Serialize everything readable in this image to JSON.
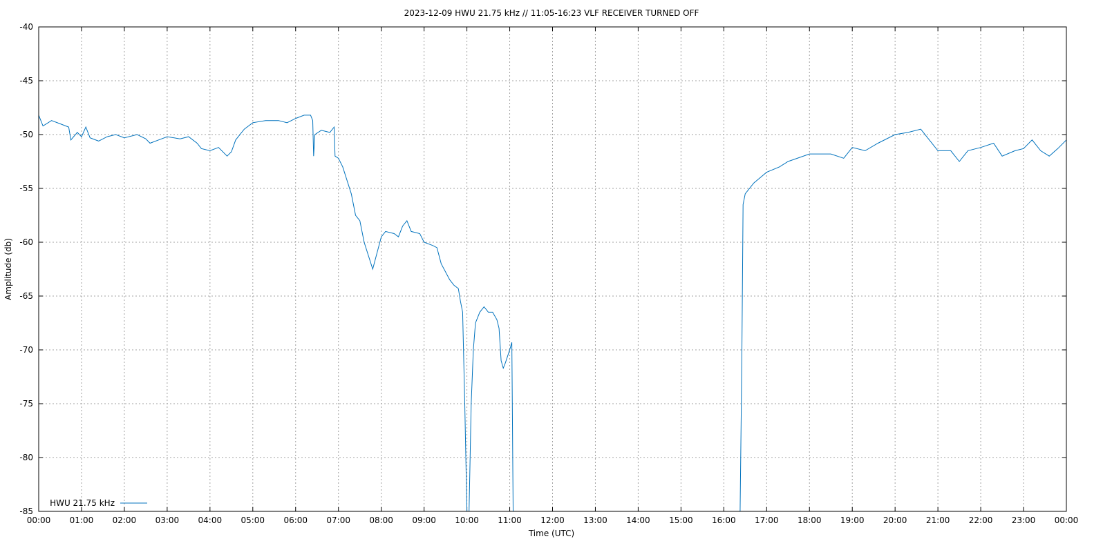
{
  "chart_data": {
    "type": "line",
    "title": "2023-12-09 HWU 21.75 kHz // 11:05-16:23 VLF RECEIVER TURNED OFF",
    "xlabel": "Time (UTC)",
    "ylabel": "Amplitude (db)",
    "xlim": [
      0,
      24
    ],
    "ylim": [
      -85,
      -40
    ],
    "grid": true,
    "legend_position": "bottom-left",
    "x_ticks": [
      "00:00",
      "01:00",
      "02:00",
      "03:00",
      "04:00",
      "05:00",
      "06:00",
      "07:00",
      "08:00",
      "09:00",
      "10:00",
      "11:00",
      "12:00",
      "13:00",
      "14:00",
      "15:00",
      "16:00",
      "17:00",
      "18:00",
      "19:00",
      "20:00",
      "21:00",
      "22:00",
      "23:00",
      "00:00"
    ],
    "y_ticks": [
      "-40",
      "-45",
      "-50",
      "-55",
      "-60",
      "-65",
      "-70",
      "-75",
      "-80",
      "-85"
    ],
    "y_tick_values": [
      -40,
      -45,
      -50,
      -55,
      -60,
      -65,
      -70,
      -75,
      -80,
      -85
    ],
    "series": [
      {
        "name": "HWU 21.75 kHz",
        "color": "#0072bd",
        "x_unit": "hours UTC",
        "points": [
          [
            0.0,
            -48.2
          ],
          [
            0.1,
            -49.2
          ],
          [
            0.3,
            -48.7
          ],
          [
            0.5,
            -49.0
          ],
          [
            0.7,
            -49.3
          ],
          [
            0.75,
            -50.5
          ],
          [
            0.9,
            -49.8
          ],
          [
            1.0,
            -50.2
          ],
          [
            1.1,
            -49.3
          ],
          [
            1.2,
            -50.3
          ],
          [
            1.4,
            -50.6
          ],
          [
            1.6,
            -50.2
          ],
          [
            1.8,
            -50.0
          ],
          [
            2.0,
            -50.3
          ],
          [
            2.3,
            -50.0
          ],
          [
            2.5,
            -50.4
          ],
          [
            2.6,
            -50.8
          ],
          [
            2.8,
            -50.5
          ],
          [
            3.0,
            -50.2
          ],
          [
            3.3,
            -50.4
          ],
          [
            3.5,
            -50.2
          ],
          [
            3.7,
            -50.8
          ],
          [
            3.8,
            -51.3
          ],
          [
            4.0,
            -51.5
          ],
          [
            4.2,
            -51.2
          ],
          [
            4.4,
            -52.0
          ],
          [
            4.5,
            -51.6
          ],
          [
            4.6,
            -50.5
          ],
          [
            4.8,
            -49.5
          ],
          [
            5.0,
            -48.9
          ],
          [
            5.3,
            -48.7
          ],
          [
            5.6,
            -48.7
          ],
          [
            5.8,
            -48.9
          ],
          [
            6.0,
            -48.5
          ],
          [
            6.2,
            -48.2
          ],
          [
            6.35,
            -48.2
          ],
          [
            6.4,
            -48.7
          ],
          [
            6.42,
            -52.0
          ],
          [
            6.45,
            -50.0
          ],
          [
            6.6,
            -49.6
          ],
          [
            6.8,
            -49.8
          ],
          [
            6.9,
            -49.3
          ],
          [
            6.92,
            -52.0
          ],
          [
            7.0,
            -52.2
          ],
          [
            7.1,
            -53.0
          ],
          [
            7.3,
            -55.5
          ],
          [
            7.4,
            -57.5
          ],
          [
            7.5,
            -58.0
          ],
          [
            7.6,
            -60.0
          ],
          [
            7.8,
            -62.5
          ],
          [
            7.9,
            -61.0
          ],
          [
            8.0,
            -59.5
          ],
          [
            8.1,
            -59.0
          ],
          [
            8.3,
            -59.2
          ],
          [
            8.4,
            -59.5
          ],
          [
            8.5,
            -58.5
          ],
          [
            8.6,
            -58.0
          ],
          [
            8.7,
            -59.0
          ],
          [
            8.9,
            -59.2
          ],
          [
            9.0,
            -60.0
          ],
          [
            9.2,
            -60.3
          ],
          [
            9.3,
            -60.5
          ],
          [
            9.4,
            -62.0
          ],
          [
            9.6,
            -63.5
          ],
          [
            9.7,
            -64.0
          ],
          [
            9.8,
            -64.3
          ],
          [
            9.85,
            -65.5
          ],
          [
            9.9,
            -66.5
          ],
          [
            9.95,
            -75.0
          ],
          [
            10.0,
            -85.0
          ],
          null,
          [
            10.05,
            -85.0
          ],
          [
            10.1,
            -75.0
          ],
          [
            10.15,
            -70.0
          ],
          [
            10.2,
            -67.5
          ],
          [
            10.3,
            -66.5
          ],
          [
            10.4,
            -66.0
          ],
          [
            10.5,
            -66.5
          ],
          [
            10.6,
            -66.5
          ],
          [
            10.7,
            -67.2
          ],
          [
            10.75,
            -68.0
          ],
          [
            10.8,
            -71.0
          ],
          [
            10.85,
            -71.7
          ],
          [
            10.9,
            -71.2
          ],
          [
            11.0,
            -70.0
          ],
          [
            11.05,
            -69.3
          ],
          [
            11.08,
            -85.0
          ],
          null,
          [
            16.38,
            -85.0
          ],
          [
            16.42,
            -71.0
          ],
          [
            16.45,
            -56.5
          ],
          [
            16.5,
            -55.5
          ],
          [
            16.7,
            -54.5
          ],
          [
            17.0,
            -53.5
          ],
          [
            17.3,
            -53.0
          ],
          [
            17.5,
            -52.5
          ],
          [
            18.0,
            -51.8
          ],
          [
            18.5,
            -51.8
          ],
          [
            18.8,
            -52.2
          ],
          [
            19.0,
            -51.2
          ],
          [
            19.3,
            -51.5
          ],
          [
            19.6,
            -50.8
          ],
          [
            20.0,
            -50.0
          ],
          [
            20.3,
            -49.8
          ],
          [
            20.6,
            -49.5
          ],
          [
            20.8,
            -50.5
          ],
          [
            21.0,
            -51.5
          ],
          [
            21.3,
            -51.5
          ],
          [
            21.5,
            -52.5
          ],
          [
            21.7,
            -51.5
          ],
          [
            22.0,
            -51.2
          ],
          [
            22.3,
            -50.8
          ],
          [
            22.5,
            -52.0
          ],
          [
            22.8,
            -51.5
          ],
          [
            23.0,
            -51.3
          ],
          [
            23.2,
            -50.5
          ],
          [
            23.4,
            -51.5
          ],
          [
            23.6,
            -52.0
          ],
          [
            23.8,
            -51.3
          ],
          [
            24.0,
            -50.5
          ]
        ]
      }
    ]
  }
}
